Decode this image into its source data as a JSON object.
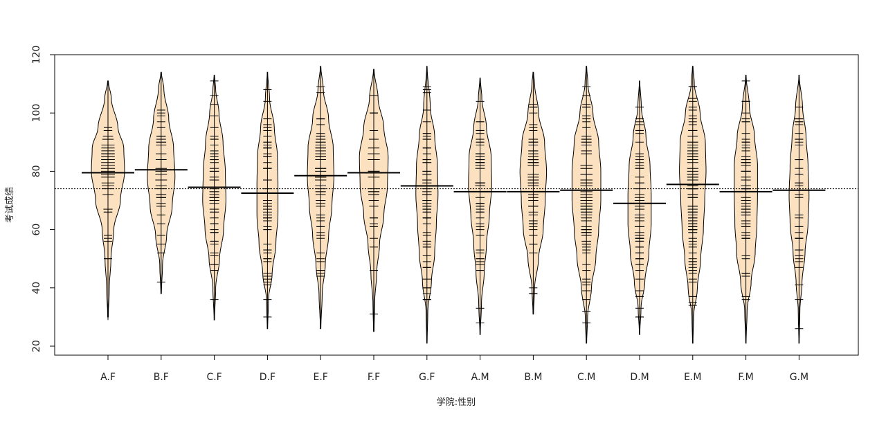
{
  "chart_data": {
    "type": "beanplot",
    "xlabel": "学院:性别",
    "ylabel": "考试成绩",
    "ylim": [
      20,
      120
    ],
    "yticks": [
      20,
      40,
      60,
      80,
      100,
      120
    ],
    "overall_mean": 74,
    "colors": {
      "bean_fill": "#FCE1C0",
      "outline": "#000000",
      "frame": "#000000"
    },
    "categories": [
      "A.F",
      "B.F",
      "C.F",
      "D.F",
      "E.F",
      "F.F",
      "G.F",
      "A.M",
      "B.M",
      "C.M",
      "D.M",
      "E.M",
      "F.M",
      "G.M"
    ],
    "groups": [
      {
        "name": "A.F",
        "mean": 79.5,
        "range": [
          29,
          111
        ],
        "width": 0.6,
        "n": 30,
        "shape": [
          [
            30,
            0.02
          ],
          [
            40,
            0.08
          ],
          [
            50,
            0.18
          ],
          [
            60,
            0.35
          ],
          [
            70,
            0.75
          ],
          [
            80,
            1.0
          ],
          [
            88,
            0.95
          ],
          [
            95,
            0.6
          ],
          [
            105,
            0.2
          ],
          [
            111,
            0.02
          ]
        ]
      },
      {
        "name": "B.F",
        "mean": 80.5,
        "range": [
          38,
          114
        ],
        "width": 0.5,
        "n": 35,
        "shape": [
          [
            38,
            0.02
          ],
          [
            48,
            0.1
          ],
          [
            58,
            0.4
          ],
          [
            68,
            0.8
          ],
          [
            78,
            1.0
          ],
          [
            88,
            0.9
          ],
          [
            98,
            0.55
          ],
          [
            108,
            0.2
          ],
          [
            114,
            0.02
          ]
        ]
      },
      {
        "name": "C.F",
        "mean": 74.5,
        "range": [
          29,
          113
        ],
        "width": 0.42,
        "n": 50,
        "shape": [
          [
            29,
            0.02
          ],
          [
            40,
            0.12
          ],
          [
            50,
            0.45
          ],
          [
            60,
            0.8
          ],
          [
            70,
            1.0
          ],
          [
            80,
            0.95
          ],
          [
            90,
            0.75
          ],
          [
            100,
            0.4
          ],
          [
            108,
            0.12
          ],
          [
            113,
            0.02
          ]
        ]
      },
      {
        "name": "D.F",
        "mean": 72.5,
        "range": [
          26,
          114
        ],
        "width": 0.38,
        "n": 55,
        "shape": [
          [
            26,
            0.02
          ],
          [
            36,
            0.1
          ],
          [
            45,
            0.45
          ],
          [
            55,
            0.8
          ],
          [
            65,
            1.0
          ],
          [
            75,
            1.0
          ],
          [
            85,
            0.95
          ],
          [
            95,
            0.65
          ],
          [
            105,
            0.2
          ],
          [
            114,
            0.02
          ]
        ]
      },
      {
        "name": "E.F",
        "mean": 78.5,
        "range": [
          26,
          116
        ],
        "width": 0.48,
        "n": 55,
        "shape": [
          [
            26,
            0.02
          ],
          [
            38,
            0.12
          ],
          [
            48,
            0.35
          ],
          [
            58,
            0.6
          ],
          [
            68,
            0.85
          ],
          [
            78,
            1.0
          ],
          [
            88,
            0.95
          ],
          [
            98,
            0.6
          ],
          [
            108,
            0.2
          ],
          [
            116,
            0.02
          ]
        ]
      },
      {
        "name": "F.F",
        "mean": 79.5,
        "range": [
          25,
          115
        ],
        "width": 0.52,
        "n": 30,
        "shape": [
          [
            25,
            0.02
          ],
          [
            35,
            0.06
          ],
          [
            45,
            0.2
          ],
          [
            55,
            0.4
          ],
          [
            65,
            0.7
          ],
          [
            75,
            0.95
          ],
          [
            85,
            1.0
          ],
          [
            95,
            0.7
          ],
          [
            105,
            0.3
          ],
          [
            115,
            0.02
          ]
        ]
      },
      {
        "name": "G.F",
        "mean": 75,
        "range": [
          21,
          116
        ],
        "width": 0.4,
        "n": 60,
        "shape": [
          [
            21,
            0.02
          ],
          [
            32,
            0.08
          ],
          [
            42,
            0.4
          ],
          [
            52,
            0.7
          ],
          [
            62,
            0.85
          ],
          [
            72,
            1.0
          ],
          [
            82,
            0.95
          ],
          [
            92,
            0.7
          ],
          [
            102,
            0.3
          ],
          [
            116,
            0.02
          ]
        ]
      },
      {
        "name": "A.M",
        "mean": 73,
        "range": [
          24,
          112
        ],
        "width": 0.42,
        "n": 60,
        "shape": [
          [
            24,
            0.02
          ],
          [
            35,
            0.12
          ],
          [
            45,
            0.35
          ],
          [
            55,
            0.55
          ],
          [
            65,
            0.8
          ],
          [
            75,
            1.0
          ],
          [
            85,
            0.95
          ],
          [
            95,
            0.55
          ],
          [
            105,
            0.15
          ],
          [
            112,
            0.02
          ]
        ]
      },
      {
        "name": "B.M",
        "mean": 73,
        "range": [
          31,
          114
        ],
        "width": 0.48,
        "n": 60,
        "shape": [
          [
            31,
            0.02
          ],
          [
            40,
            0.1
          ],
          [
            50,
            0.4
          ],
          [
            60,
            0.75
          ],
          [
            70,
            0.9
          ],
          [
            80,
            1.0
          ],
          [
            90,
            0.85
          ],
          [
            100,
            0.4
          ],
          [
            110,
            0.1
          ],
          [
            114,
            0.02
          ]
        ]
      },
      {
        "name": "C.M",
        "mean": 73.5,
        "range": [
          21,
          116
        ],
        "width": 0.52,
        "n": 80,
        "shape": [
          [
            21,
            0.02
          ],
          [
            30,
            0.08
          ],
          [
            40,
            0.35
          ],
          [
            50,
            0.65
          ],
          [
            60,
            0.85
          ],
          [
            70,
            1.0
          ],
          [
            80,
            1.0
          ],
          [
            90,
            0.85
          ],
          [
            100,
            0.45
          ],
          [
            110,
            0.1
          ],
          [
            116,
            0.02
          ]
        ]
      },
      {
        "name": "D.M",
        "mean": 69,
        "range": [
          24,
          111
        ],
        "width": 0.42,
        "n": 60,
        "shape": [
          [
            24,
            0.02
          ],
          [
            33,
            0.12
          ],
          [
            42,
            0.45
          ],
          [
            52,
            0.8
          ],
          [
            62,
            1.0
          ],
          [
            72,
            1.0
          ],
          [
            82,
            0.9
          ],
          [
            92,
            0.55
          ],
          [
            102,
            0.15
          ],
          [
            111,
            0.02
          ]
        ]
      },
      {
        "name": "E.M",
        "mean": 75.5,
        "range": [
          21,
          116
        ],
        "width": 0.48,
        "n": 90,
        "shape": [
          [
            21,
            0.02
          ],
          [
            30,
            0.06
          ],
          [
            40,
            0.35
          ],
          [
            50,
            0.6
          ],
          [
            60,
            0.8
          ],
          [
            70,
            0.9
          ],
          [
            80,
            1.0
          ],
          [
            90,
            0.95
          ],
          [
            100,
            0.55
          ],
          [
            110,
            0.12
          ],
          [
            116,
            0.02
          ]
        ]
      },
      {
        "name": "F.M",
        "mean": 73,
        "range": [
          21,
          113
        ],
        "width": 0.42,
        "n": 70,
        "shape": [
          [
            21,
            0.02
          ],
          [
            32,
            0.1
          ],
          [
            42,
            0.45
          ],
          [
            52,
            0.8
          ],
          [
            62,
            0.95
          ],
          [
            72,
            1.0
          ],
          [
            82,
            1.0
          ],
          [
            92,
            0.75
          ],
          [
            102,
            0.3
          ],
          [
            113,
            0.02
          ]
        ]
      },
      {
        "name": "G.M",
        "mean": 73.5,
        "range": [
          21,
          113
        ],
        "width": 0.36,
        "n": 40,
        "shape": [
          [
            21,
            0.02
          ],
          [
            32,
            0.08
          ],
          [
            42,
            0.3
          ],
          [
            52,
            0.6
          ],
          [
            62,
            0.9
          ],
          [
            72,
            1.0
          ],
          [
            82,
            0.9
          ],
          [
            92,
            0.7
          ],
          [
            102,
            0.35
          ],
          [
            113,
            0.02
          ]
        ]
      }
    ]
  }
}
